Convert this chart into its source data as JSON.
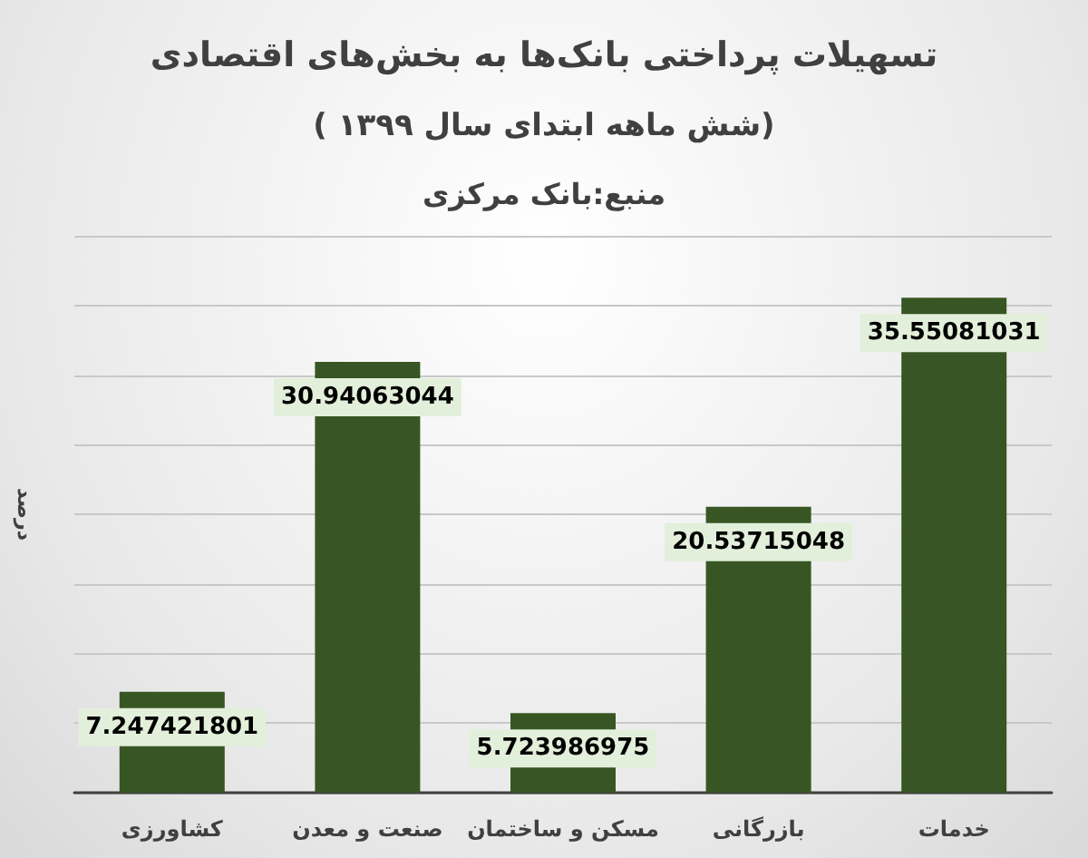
{
  "chart_data": {
    "type": "bar",
    "title": "تسهیلات پرداختی بانک‌ها به بخش‌های اقتصادی",
    "subtitle": "( شش ماهه ابتدای سال ۱۳۹۹)",
    "annotations": [
      "منبع:بانک مرکزی"
    ],
    "ylabel": "درصد",
    "categories": [
      "کشاورزی",
      "صنعت و معدن",
      "مسکن و ساختمان",
      "بازرگانی",
      "خدمات"
    ],
    "values": [
      7.247421801,
      30.94063044,
      5.723986975,
      20.53715048,
      35.55081031
    ],
    "color": "#375623",
    "tick_labels": "x",
    "grid": "y",
    "data_labels": true
  }
}
